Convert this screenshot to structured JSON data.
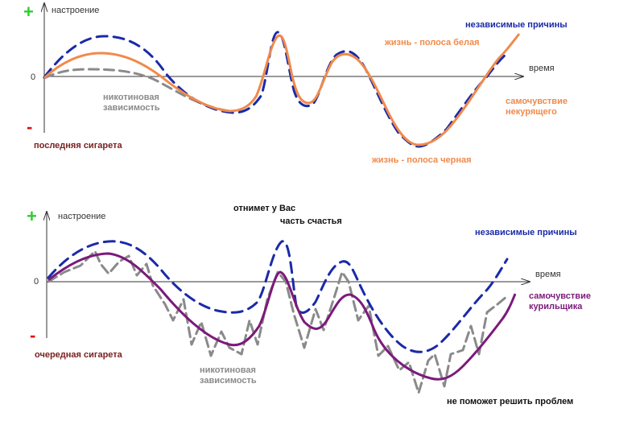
{
  "colors": {
    "axis": "#333333",
    "blue": "#1a2aa8",
    "gray": "#8a8a8a",
    "orange": "#f08a4b",
    "purple": "#7b1a7a",
    "plus": "#2fcc2f",
    "minus": "#dd1111",
    "dark_red": "#7a2020"
  },
  "top_panel": {
    "plus": "+",
    "minus": "-",
    "y_axis_label": "настроение",
    "zero": "0",
    "x_axis_label": "время",
    "start_label": "последняя сигарета",
    "independent_causes": "независимые причины",
    "life_white": "жизнь - полоса белая",
    "life_black": "жизнь - полоса черная",
    "nicotine_line1": "никотиновая",
    "nicotine_line2": "зависимость",
    "feeling_line1": "самочувствие",
    "feeling_line2": "некурящего"
  },
  "bottom_panel": {
    "plus": "+",
    "minus": "-",
    "y_axis_label": "настроение",
    "zero": "0",
    "x_axis_label": "время",
    "start_label": "очередная сигарета",
    "independent_causes": "независимые причины",
    "takes_away_line1": "отнимет у Вас",
    "takes_away_line2": "часть счастья",
    "wont_help": "не поможет решить проблем",
    "nicotine_line1": "никотиновая",
    "nicotine_line2": "зависимость",
    "feeling_line1": "самочувствие",
    "feeling_line2": "курильщика"
  }
}
